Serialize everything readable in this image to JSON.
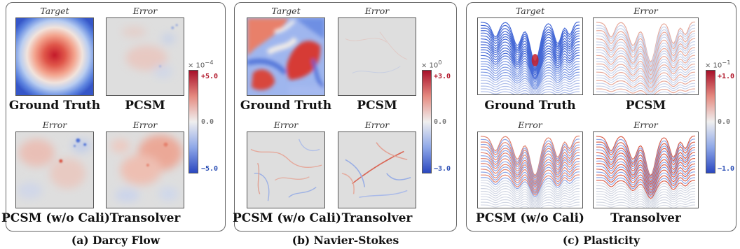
{
  "colors": {
    "positive": "#b2182b",
    "negative": "#2c4fb5",
    "neutral": "#dedede"
  },
  "panels": [
    {
      "caption": "(a) Darcy Flow",
      "tiles": [
        {
          "tag": "Target",
          "label": "Ground Truth"
        },
        {
          "tag": "Error",
          "label": "PCSM"
        },
        {
          "tag": "Error",
          "label": "PCSM (w/o Cali)"
        },
        {
          "tag": "Error",
          "label": "Transolver"
        }
      ],
      "colorbar": {
        "scale_prefix": "× 10",
        "scale_exp": "−4",
        "max": "+5.0",
        "mid": "0.0",
        "min": "−5.0"
      }
    },
    {
      "caption": "(b) Navier-Stokes",
      "tiles": [
        {
          "tag": "Target",
          "label": "Ground Truth"
        },
        {
          "tag": "Error",
          "label": "PCSM"
        },
        {
          "tag": "Error",
          "label": "PCSM (w/o Cali)"
        },
        {
          "tag": "Error",
          "label": "Transolver"
        }
      ],
      "colorbar": {
        "scale_prefix": "× 10",
        "scale_exp": "0",
        "max": "+3.0",
        "mid": "0.0",
        "min": "−3.0"
      }
    },
    {
      "caption": "(c) Plasticity",
      "tiles": [
        {
          "tag": "Target",
          "label": "Ground Truth"
        },
        {
          "tag": "Error",
          "label": "PCSM"
        },
        {
          "tag": "Error",
          "label": "PCSM (w/o Cali)"
        },
        {
          "tag": "Error",
          "label": "Transolver"
        }
      ],
      "colorbar": {
        "scale_prefix": "× 10",
        "scale_exp": "−1",
        "max": "+1.0",
        "mid": "0.0",
        "min": "−1.0"
      }
    }
  ]
}
